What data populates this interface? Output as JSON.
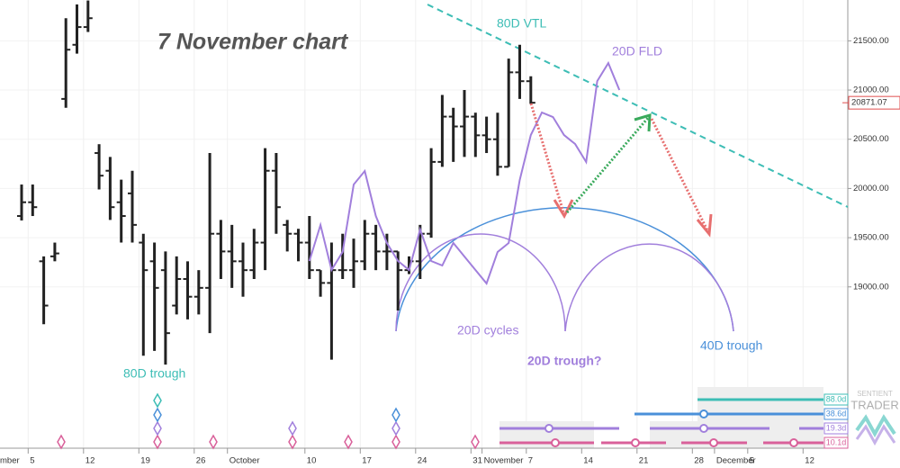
{
  "chart_data": {
    "type": "ohlc",
    "title": "7 November chart",
    "x_edge_label": "mber",
    "categories": [
      null,
      "5",
      null,
      null,
      null,
      null,
      "12",
      null,
      null,
      null,
      null,
      "19",
      null,
      null,
      null,
      null,
      "26",
      null,
      null,
      "October",
      null,
      null,
      null,
      null,
      null,
      null,
      "10",
      null,
      null,
      null,
      null,
      "17",
      null,
      null,
      null,
      null,
      "24",
      null,
      null,
      null,
      null,
      "31",
      "November",
      null,
      null,
      null,
      "7",
      null,
      null,
      null,
      null,
      "14",
      null,
      null,
      null,
      null,
      "21",
      null,
      null,
      null,
      null,
      "28",
      null,
      "December",
      null,
      null,
      "5",
      null,
      null,
      null,
      null,
      "12",
      null
    ],
    "open": [
      19720,
      19860,
      19260,
      19310,
      20910,
      21460,
      21640,
      20360,
      20180,
      19860,
      19950,
      19450,
      19260,
      19170,
      18810,
      19080,
      18900,
      18990,
      19540,
      19360,
      19260,
      19170,
      19450,
      20180,
      19630,
      19540,
      19450,
      19170,
      19040,
      19170,
      19170,
      19260,
      19540,
      19360,
      19360,
      19170,
      19260,
      19540,
      20270,
      20730,
      20630,
      20730,
      20540,
      20500,
      20220,
      21180,
      21090,
      null,
      null,
      null,
      null,
      null,
      null,
      null,
      null,
      null,
      null,
      null,
      null,
      null,
      null,
      null,
      null,
      null,
      null,
      null,
      null,
      null,
      null,
      null,
      null,
      null,
      null
    ],
    "high": [
      20040,
      20040,
      19310,
      19450,
      21730,
      21870,
      21910,
      20450,
      20320,
      20090,
      20180,
      19540,
      19450,
      19360,
      19310,
      19260,
      19170,
      20360,
      19680,
      19630,
      19450,
      19590,
      20410,
      20360,
      19680,
      19590,
      19720,
      19170,
      19450,
      19540,
      19490,
      19680,
      19630,
      19540,
      19360,
      19310,
      19630,
      20410,
      20950,
      20820,
      21000,
      20770,
      20730,
      20770,
      21320,
      21460,
      21140,
      null,
      null,
      null,
      null,
      null,
      null,
      null,
      null,
      null,
      null,
      null,
      null,
      null,
      null,
      null,
      null,
      null,
      null,
      null,
      null,
      null,
      null,
      null,
      null,
      null,
      null
    ],
    "low": [
      19675,
      19720,
      18620,
      19260,
      20820,
      21370,
      21590,
      19990,
      19680,
      19450,
      19450,
      18300,
      18350,
      18210,
      18720,
      18670,
      18720,
      18530,
      19080,
      18990,
      18900,
      19080,
      19170,
      19540,
      19360,
      19260,
      19080,
      18900,
      18260,
      19080,
      18990,
      19170,
      19170,
      19170,
      18760,
      19130,
      19080,
      19500,
      20220,
      20270,
      20320,
      20320,
      20360,
      20130,
      20220,
      20910,
      20860,
      null,
      null,
      null,
      null,
      null,
      null,
      null,
      null,
      null,
      null,
      null,
      null,
      null,
      null,
      null,
      null,
      null,
      null,
      null,
      null,
      null,
      null,
      null,
      null,
      null,
      null
    ],
    "close": [
      19860,
      19810,
      18810,
      19340,
      21410,
      21640,
      21730,
      20130,
      19810,
      19720,
      19630,
      19170,
      18990,
      18530,
      19080,
      18900,
      18990,
      19540,
      19360,
      19260,
      19170,
      19450,
      20180,
      19810,
      19540,
      19450,
      19170,
      19040,
      19170,
      19170,
      19260,
      19540,
      19360,
      19360,
      19170,
      19260,
      19540,
      20270,
      20730,
      20630,
      20730,
      20540,
      20500,
      20220,
      21180,
      21090,
      20871.07,
      null,
      null,
      null,
      null,
      null,
      null,
      null,
      null,
      null,
      null,
      null,
      null,
      null,
      null,
      null,
      null,
      null,
      null,
      null,
      null,
      null,
      null,
      null,
      null,
      null,
      null
    ],
    "bar_color": "#222222",
    "fld": {
      "name": "20D FLD",
      "color": "#a17fdc",
      "values": [
        null,
        null,
        null,
        null,
        null,
        null,
        null,
        null,
        null,
        null,
        null,
        null,
        null,
        null,
        null,
        null,
        null,
        null,
        null,
        null,
        null,
        null,
        null,
        null,
        null,
        null,
        19263,
        19629,
        19172,
        19355,
        20040,
        20177,
        19720,
        19446,
        19263,
        19172,
        19583,
        19263,
        19217,
        19446,
        19309,
        19172,
        19035,
        19355,
        19446,
        20086,
        20543,
        20772,
        20726,
        20543,
        20452,
        20269,
        21091,
        21274,
        21000,
        null,
        null,
        null,
        null,
        null,
        null,
        null,
        null,
        null,
        null,
        null,
        null,
        null,
        null,
        null,
        null,
        null,
        null
      ]
    },
    "ylim": [
      17370,
      21915
    ],
    "yticks": [
      {
        "value": 19000,
        "label": "19000.00"
      },
      {
        "value": 19500,
        "label": "19500.00"
      },
      {
        "value": 20000,
        "label": "20000.00"
      },
      {
        "value": 20500,
        "label": "20500.00"
      },
      {
        "value": 21000,
        "label": "21000.00"
      },
      {
        "value": 21500,
        "label": "21500.00"
      }
    ],
    "annotations": {
      "vtl": "80D VTL",
      "fld": "20D FLD",
      "cycles": "20D cycles",
      "trough20": "20D trough?",
      "trough40": "40D trough",
      "trough80": "80D trough"
    },
    "cycle_labels": [
      "88.0d",
      "38.6d",
      "19.3d",
      "10.1d"
    ],
    "watermark": {
      "top": "SENTIENT",
      "bottom": "TRADER"
    }
  }
}
